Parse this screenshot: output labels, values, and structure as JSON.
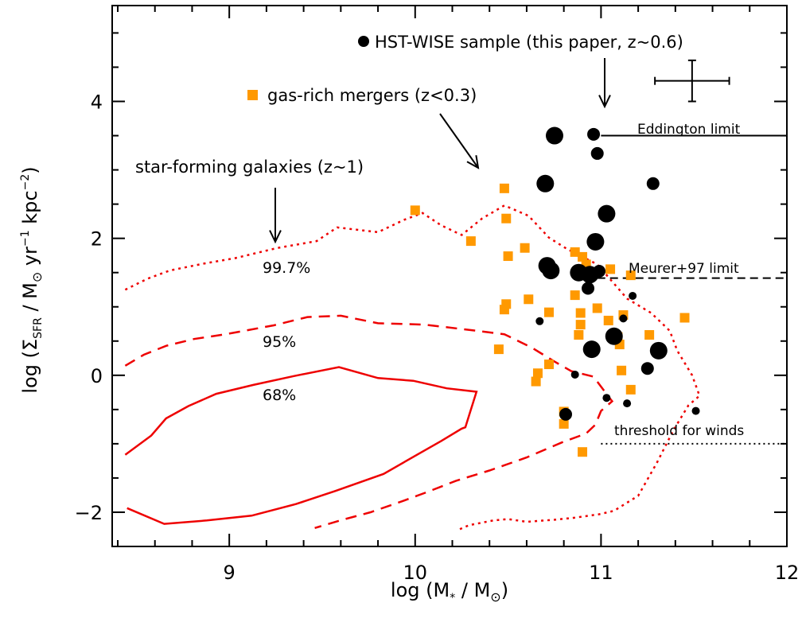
{
  "chart_data": {
    "type": "scatter",
    "xlim": [
      8.37,
      12.0
    ],
    "ylim": [
      -2.5,
      5.4
    ],
    "xticks": [
      9,
      10,
      11,
      12
    ],
    "yticks": [
      -2,
      0,
      2,
      4
    ],
    "xtick_labels": [
      "9",
      "10",
      "11",
      "12"
    ],
    "ytick_labels": [
      "−2",
      "0",
      "2",
      "4"
    ],
    "xlabel": {
      "pre": "log (M",
      "sub": "*",
      "post": " / M",
      "sym": "⊙",
      "end": ")"
    },
    "ylabel": {
      "pre": "log (Σ",
      "sub": "SFR",
      "mid": " / M",
      "sym": "⊙",
      "mid2": " yr",
      "sup1": "−1",
      "mid3": " kpc",
      "sup2": "−2",
      "end": ")"
    },
    "grid": false,
    "legend": {
      "hst": "HST-WISE sample (this paper, z~0.6)",
      "mergers": "gas-rich mergers (z<0.3)",
      "sfg": "star-forming galaxies (z~1)"
    },
    "annotations": {
      "eddington": "Eddington limit",
      "meurer": "Meurer+97 limit",
      "winds": "threshold for winds",
      "c68": "68%",
      "c95": "95%",
      "c997": "99.7%"
    },
    "reference_lines": {
      "eddington": {
        "y": 3.5,
        "x_from": 11.0,
        "x_to": 12.0
      },
      "meurer": {
        "y": 1.42,
        "x_from": 10.98,
        "x_to": 12.0
      },
      "winds": {
        "y": -1.0,
        "x_from": 11.0,
        "x_to": 12.0
      }
    },
    "error_bar": {
      "x": 11.49,
      "y": 4.3,
      "xerr": 0.2,
      "yerr": 0.3
    },
    "colors": {
      "hst": "#000000",
      "mergers": "#ff9900",
      "contour": "#ee0000"
    },
    "series": [
      {
        "name": "HST-WISE sample (this paper, z~0.6)",
        "marker": "circle",
        "points": [
          {
            "x": 10.75,
            "y": 3.5,
            "size": "large"
          },
          {
            "x": 10.96,
            "y": 3.52,
            "size": "medium"
          },
          {
            "x": 10.98,
            "y": 3.24,
            "size": "medium"
          },
          {
            "x": 10.7,
            "y": 2.8,
            "size": "large"
          },
          {
            "x": 11.28,
            "y": 2.8,
            "size": "medium"
          },
          {
            "x": 11.03,
            "y": 2.36,
            "size": "large"
          },
          {
            "x": 10.97,
            "y": 1.95,
            "size": "large"
          },
          {
            "x": 10.71,
            "y": 1.6,
            "size": "large"
          },
          {
            "x": 10.73,
            "y": 1.53,
            "size": "large"
          },
          {
            "x": 10.88,
            "y": 1.5,
            "size": "large"
          },
          {
            "x": 10.94,
            "y": 1.47,
            "size": "large"
          },
          {
            "x": 10.99,
            "y": 1.52,
            "size": "medium"
          },
          {
            "x": 10.93,
            "y": 1.27,
            "size": "medium"
          },
          {
            "x": 11.17,
            "y": 1.16,
            "size": "small"
          },
          {
            "x": 10.67,
            "y": 0.79,
            "size": "small"
          },
          {
            "x": 11.12,
            "y": 0.83,
            "size": "small"
          },
          {
            "x": 11.07,
            "y": 0.57,
            "size": "large"
          },
          {
            "x": 10.95,
            "y": 0.38,
            "size": "large"
          },
          {
            "x": 11.31,
            "y": 0.36,
            "size": "large"
          },
          {
            "x": 11.25,
            "y": 0.1,
            "size": "medium"
          },
          {
            "x": 10.86,
            "y": 0.01,
            "size": "small"
          },
          {
            "x": 11.03,
            "y": -0.33,
            "size": "small"
          },
          {
            "x": 11.14,
            "y": -0.41,
            "size": "small"
          },
          {
            "x": 10.81,
            "y": -0.57,
            "size": "medium"
          },
          {
            "x": 11.51,
            "y": -0.52,
            "size": "small"
          }
        ]
      },
      {
        "name": "gas-rich mergers (z<0.3)",
        "marker": "square",
        "points": [
          {
            "x": 10.48,
            "y": 2.73
          },
          {
            "x": 10.0,
            "y": 2.41
          },
          {
            "x": 10.49,
            "y": 2.29
          },
          {
            "x": 10.3,
            "y": 1.96
          },
          {
            "x": 10.59,
            "y": 1.86
          },
          {
            "x": 10.5,
            "y": 1.74
          },
          {
            "x": 10.86,
            "y": 1.8
          },
          {
            "x": 10.9,
            "y": 1.73
          },
          {
            "x": 10.92,
            "y": 1.62
          },
          {
            "x": 11.05,
            "y": 1.55
          },
          {
            "x": 11.16,
            "y": 1.46
          },
          {
            "x": 10.86,
            "y": 1.17
          },
          {
            "x": 10.61,
            "y": 1.11
          },
          {
            "x": 10.49,
            "y": 1.04
          },
          {
            "x": 10.48,
            "y": 0.96
          },
          {
            "x": 10.72,
            "y": 0.92
          },
          {
            "x": 10.98,
            "y": 0.98
          },
          {
            "x": 10.89,
            "y": 0.91
          },
          {
            "x": 11.12,
            "y": 0.88
          },
          {
            "x": 11.04,
            "y": 0.8
          },
          {
            "x": 10.89,
            "y": 0.74
          },
          {
            "x": 10.88,
            "y": 0.59
          },
          {
            "x": 11.09,
            "y": 0.56
          },
          {
            "x": 11.26,
            "y": 0.59
          },
          {
            "x": 11.45,
            "y": 0.84
          },
          {
            "x": 11.1,
            "y": 0.45
          },
          {
            "x": 10.45,
            "y": 0.38
          },
          {
            "x": 10.72,
            "y": 0.16
          },
          {
            "x": 10.66,
            "y": 0.03
          },
          {
            "x": 10.65,
            "y": -0.09
          },
          {
            "x": 11.11,
            "y": 0.07
          },
          {
            "x": 11.16,
            "y": -0.21
          },
          {
            "x": 10.8,
            "y": -0.53
          },
          {
            "x": 10.8,
            "y": -0.71
          },
          {
            "x": 10.9,
            "y": -1.12
          }
        ]
      }
    ],
    "contours": [
      {
        "label": "68%",
        "style": "solid",
        "points": [
          [
            8.44,
            -1.16
          ],
          [
            8.58,
            -0.88
          ],
          [
            8.66,
            -0.63
          ],
          [
            8.78,
            -0.45
          ],
          [
            8.93,
            -0.27
          ],
          [
            9.13,
            -0.14
          ],
          [
            9.35,
            -0.01
          ],
          [
            9.59,
            0.12
          ],
          [
            9.8,
            -0.04
          ],
          [
            9.99,
            -0.08
          ],
          [
            10.17,
            -0.19
          ],
          [
            10.33,
            -0.24
          ],
          [
            10.3,
            -0.5
          ],
          [
            10.27,
            -0.76
          ],
          [
            10.25,
            -0.78
          ],
          [
            10.14,
            -0.96
          ],
          [
            10.03,
            -1.13
          ],
          [
            9.83,
            -1.44
          ],
          [
            9.57,
            -1.69
          ],
          [
            9.36,
            -1.88
          ],
          [
            9.12,
            -2.05
          ],
          [
            8.88,
            -2.12
          ],
          [
            8.65,
            -2.17
          ],
          [
            8.45,
            -1.94
          ]
        ]
      },
      {
        "label": "95%",
        "style": "dashed",
        "points": [
          [
            8.44,
            0.14
          ],
          [
            8.54,
            0.3
          ],
          [
            8.66,
            0.43
          ],
          [
            8.81,
            0.53
          ],
          [
            8.98,
            0.6
          ],
          [
            9.24,
            0.73
          ],
          [
            9.42,
            0.85
          ],
          [
            9.6,
            0.87
          ],
          [
            9.8,
            0.76
          ],
          [
            10.05,
            0.74
          ],
          [
            10.3,
            0.66
          ],
          [
            10.48,
            0.6
          ],
          [
            10.63,
            0.4
          ],
          [
            10.75,
            0.2
          ],
          [
            10.84,
            0.06
          ],
          [
            10.96,
            -0.02
          ],
          [
            11.04,
            -0.31
          ],
          [
            11.06,
            -0.38
          ],
          [
            11.0,
            -0.52
          ],
          [
            10.97,
            -0.72
          ],
          [
            10.92,
            -0.85
          ],
          [
            10.79,
            -0.98
          ],
          [
            10.6,
            -1.2
          ],
          [
            10.4,
            -1.39
          ],
          [
            10.22,
            -1.54
          ],
          [
            10.06,
            -1.71
          ],
          [
            9.93,
            -1.84
          ],
          [
            9.76,
            -2.0
          ],
          [
            9.61,
            -2.11
          ],
          [
            9.46,
            -2.23
          ]
        ]
      },
      {
        "label": "99.7%",
        "style": "dotted",
        "points": [
          [
            8.44,
            1.25
          ],
          [
            8.56,
            1.41
          ],
          [
            8.68,
            1.53
          ],
          [
            8.86,
            1.63
          ],
          [
            9.03,
            1.71
          ],
          [
            9.26,
            1.86
          ],
          [
            9.47,
            1.96
          ],
          [
            9.58,
            2.16
          ],
          [
            9.8,
            2.09
          ],
          [
            9.94,
            2.27
          ],
          [
            10.04,
            2.37
          ],
          [
            10.14,
            2.19
          ],
          [
            10.25,
            2.05
          ],
          [
            10.36,
            2.29
          ],
          [
            10.48,
            2.48
          ],
          [
            10.61,
            2.33
          ],
          [
            10.72,
            2.01
          ],
          [
            10.82,
            1.84
          ],
          [
            10.98,
            1.62
          ],
          [
            11.14,
            1.12
          ],
          [
            11.27,
            0.91
          ],
          [
            11.37,
            0.65
          ],
          [
            11.41,
            0.36
          ],
          [
            11.49,
            0.0
          ],
          [
            11.53,
            -0.3
          ],
          [
            11.47,
            -0.44
          ],
          [
            11.39,
            -0.8
          ],
          [
            11.3,
            -1.28
          ],
          [
            11.2,
            -1.76
          ],
          [
            11.07,
            -1.98
          ],
          [
            10.99,
            -2.03
          ],
          [
            10.86,
            -2.08
          ],
          [
            10.75,
            -2.11
          ],
          [
            10.6,
            -2.14
          ],
          [
            10.5,
            -2.1
          ],
          [
            10.42,
            -2.12
          ],
          [
            10.29,
            -2.19
          ],
          [
            10.23,
            -2.26
          ]
        ]
      }
    ]
  }
}
